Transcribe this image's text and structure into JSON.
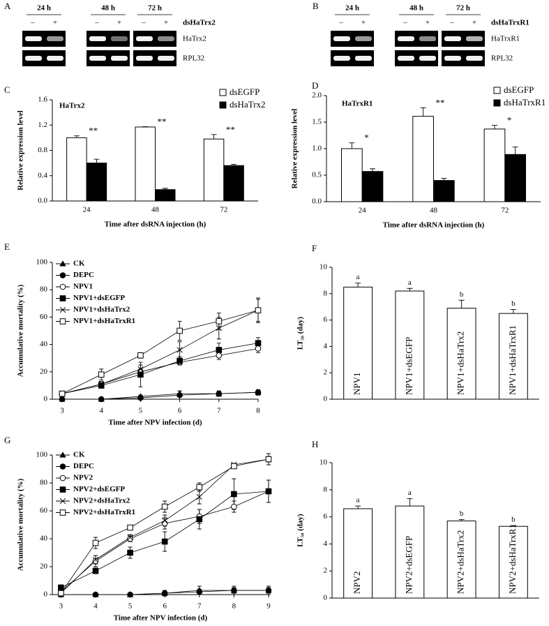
{
  "gels": [
    {
      "panel": "A",
      "times": [
        "24 h",
        "48 h",
        "72 h"
      ],
      "signs": [
        "–",
        "+"
      ],
      "treatment": "dsHaTrx2",
      "bands": [
        "HaTrx2",
        "RPL32"
      ]
    },
    {
      "panel": "B",
      "times": [
        "24 h",
        "48 h",
        "72 h"
      ],
      "signs": [
        "–",
        "+"
      ],
      "treatment": "dsHaTrxR1",
      "bands": [
        "HaTrxR1",
        "RPL32"
      ]
    }
  ],
  "chart_data": [
    {
      "type": "bar",
      "panel": "C",
      "title": "HaTrx2",
      "categories": [
        "24",
        "48",
        "72"
      ],
      "series": [
        {
          "name": "dsEGFP",
          "color": "#ffffff",
          "values": [
            1.0,
            1.17,
            0.98
          ],
          "errors": [
            0.03,
            0.005,
            0.07
          ]
        },
        {
          "name": "dsHaTrx2",
          "color": "#000000",
          "values": [
            0.6,
            0.18,
            0.56
          ],
          "errors": [
            0.06,
            0.02,
            0.02
          ]
        }
      ],
      "significance": [
        "**",
        "**",
        "**"
      ],
      "ylim": [
        0,
        1.6
      ],
      "yticks": [
        {
          "value": 0,
          "label": "0.0"
        },
        0.4,
        0.8,
        1.2,
        1.6
      ],
      "y_label": "Relative expression level",
      "x_label": "Time after dsRNA injection (h)",
      "legend": "upper right"
    },
    {
      "type": "bar",
      "panel": "D",
      "title": "HaTrxR1",
      "categories": [
        "24",
        "48",
        "72"
      ],
      "series": [
        {
          "name": "dsEGFP",
          "color": "#ffffff",
          "values": [
            1.0,
            1.61,
            1.37
          ],
          "errors": [
            0.11,
            0.16,
            0.07
          ]
        },
        {
          "name": "dsHaTrxR1",
          "color": "#000000",
          "values": [
            0.57,
            0.4,
            0.89
          ],
          "errors": [
            0.05,
            0.04,
            0.14
          ]
        }
      ],
      "significance": [
        "*",
        "**",
        "*"
      ],
      "ylim": [
        0,
        2.0
      ],
      "yticks": [
        {
          "value": 0,
          "label": "0.0"
        },
        0.5,
        {
          "value": 1,
          "label": "1.0"
        },
        1.5,
        {
          "value": 2,
          "label": "2.0"
        }
      ],
      "y_label": "Relative expression level",
      "x_label": "Time after dsRNA injection (h)",
      "legend": "upper right"
    },
    {
      "type": "line",
      "panel": "E",
      "x": [
        3,
        4,
        5,
        6,
        7,
        8
      ],
      "xlim": [
        2.75,
        8
      ],
      "xticks": [
        3,
        4,
        5,
        6,
        7,
        8
      ],
      "ylim": [
        0,
        100
      ],
      "yticks": [
        0,
        20,
        40,
        60,
        80,
        100
      ],
      "y_label": "Accumulative mortality (%)",
      "x_label": "Time after NPV infection (d)",
      "legend": "upper left",
      "series": [
        {
          "name": "CK",
          "color": "#000000",
          "marker": "triangle",
          "values": [
            0,
            0,
            2,
            4,
            4,
            5
          ],
          "errors": [
            0,
            0,
            1,
            2,
            2,
            2
          ]
        },
        {
          "name": "DEPC",
          "color": "#000000",
          "marker": "circle-filled",
          "values": [
            0,
            0,
            1,
            3,
            4,
            5
          ],
          "errors": [
            0,
            0,
            1,
            3,
            2,
            2
          ]
        },
        {
          "name": "NPV1",
          "color": "#000000",
          "marker": "circle-open",
          "values": [
            4,
            11,
            20,
            27,
            32,
            37
          ],
          "errors": [
            1,
            2,
            2,
            2,
            3,
            3
          ]
        },
        {
          "name": "NPV1+dsEGFP",
          "color": "#000000",
          "marker": "square-filled",
          "values": [
            4,
            10,
            18,
            28,
            36,
            41
          ],
          "errors": [
            1,
            2,
            9,
            3,
            5,
            4
          ]
        },
        {
          "name": "NPV1+dsHaTrx2",
          "color": "#000000",
          "marker": "x",
          "values": [
            4,
            11,
            22,
            36,
            52,
            65
          ],
          "errors": [
            1,
            2,
            3,
            6,
            8,
            8
          ]
        },
        {
          "name": "NPV1+dsHaTrxR1",
          "color": "#000000",
          "marker": "square-open",
          "values": [
            4,
            18,
            32,
            50,
            57,
            65
          ],
          "errors": [
            1,
            4,
            2,
            7,
            6,
            9
          ]
        }
      ]
    },
    {
      "type": "bar",
      "panel": "F",
      "categories": [
        "NPV1",
        "NPV1+dsEGFP",
        "NPV1+dsHaTrx2",
        "NPV1+dsHaTrxR1"
      ],
      "values": [
        8.5,
        8.2,
        6.9,
        6.5
      ],
      "errors": [
        0.3,
        0.2,
        0.6,
        0.3
      ],
      "color": "#ffffff",
      "letters": [
        "a",
        "a",
        "b",
        "b"
      ],
      "ylim": [
        0,
        10
      ],
      "yticks": [
        0,
        2,
        4,
        6,
        8,
        10
      ],
      "y_label": "LT₅₀ (day)"
    },
    {
      "type": "line",
      "panel": "G",
      "x": [
        3,
        4,
        5,
        6,
        7,
        8,
        9
      ],
      "xlim": [
        2.75,
        9
      ],
      "xticks": [
        3,
        4,
        5,
        6,
        7,
        8,
        9
      ],
      "ylim": [
        0,
        100
      ],
      "yticks": [
        0,
        20,
        40,
        60,
        80,
        100
      ],
      "y_label": "Accumulative mortality (%)",
      "x_label": "Time after NPV infection (d)",
      "legend": "upper left",
      "series": [
        {
          "name": "CK",
          "color": "#000000",
          "marker": "triangle",
          "values": [
            0,
            0,
            0,
            1,
            3,
            3,
            3
          ],
          "errors": [
            0,
            0,
            0,
            2,
            3,
            3,
            3
          ]
        },
        {
          "name": "DEPC",
          "color": "#000000",
          "marker": "circle-filled",
          "values": [
            0,
            0,
            0,
            1,
            2,
            3,
            3
          ],
          "errors": [
            0,
            0,
            0,
            1,
            2,
            2,
            2
          ]
        },
        {
          "name": "NPV2",
          "color": "#000000",
          "marker": "circle-open",
          "values": [
            2,
            24,
            40,
            51,
            56,
            63,
            74
          ],
          "errors": [
            1,
            4,
            2,
            4,
            5,
            4,
            8
          ]
        },
        {
          "name": "NPV2+dsEGFP",
          "color": "#000000",
          "marker": "square-filled",
          "values": [
            5,
            17,
            30,
            38,
            54,
            72,
            74
          ],
          "errors": [
            2,
            2,
            4,
            7,
            7,
            11,
            8
          ]
        },
        {
          "name": "NPV2+dsHaTrx2",
          "color": "#000000",
          "marker": "x",
          "values": [
            1,
            25,
            41,
            53,
            70,
            93,
            97
          ],
          "errors": [
            1,
            3,
            2,
            4,
            5,
            1,
            2
          ]
        },
        {
          "name": "NPV2+dsHaTrxR1",
          "color": "#000000",
          "marker": "square-open",
          "values": [
            1,
            37,
            48,
            63,
            77,
            92,
            97
          ],
          "errors": [
            1,
            4,
            1,
            4,
            3,
            1,
            4
          ]
        }
      ]
    },
    {
      "type": "bar",
      "panel": "H",
      "categories": [
        "NPV2",
        "NPV2+dsEGFP",
        "NPV2+dsHaTrx2",
        "NPV2+dsHaTrxR1"
      ],
      "values": [
        6.6,
        6.8,
        5.7,
        5.3
      ],
      "errors": [
        0.2,
        0.55,
        0.1,
        0.05
      ],
      "color": "#ffffff",
      "letters": [
        "a",
        "a",
        "b",
        "b"
      ],
      "ylim": [
        0,
        10
      ],
      "yticks": [
        0,
        2,
        4,
        6,
        8,
        10
      ],
      "y_label": "LT₅₀ (day)"
    }
  ]
}
